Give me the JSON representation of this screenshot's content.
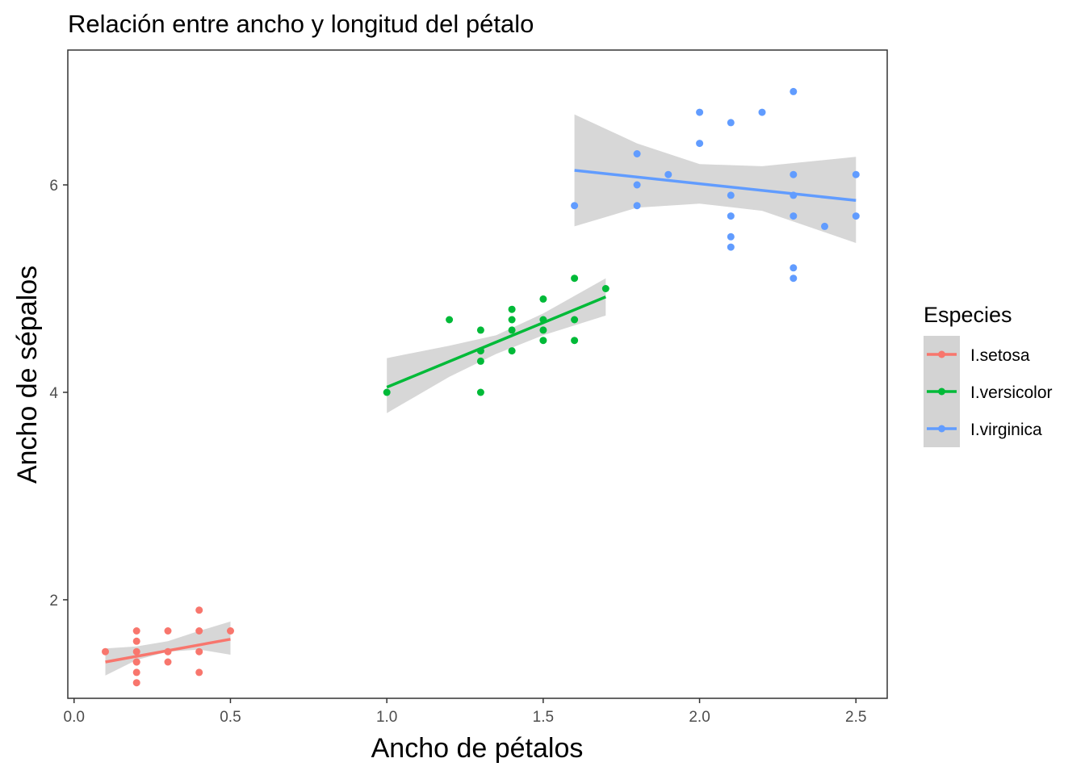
{
  "chart_data": {
    "type": "scatter",
    "title": "Relación entre ancho y longitud del pétalo",
    "xlabel": "Ancho de pétalos",
    "ylabel": "Ancho de sépalos",
    "xlim": [
      -0.02,
      2.6
    ],
    "ylim": [
      1.05,
      7.3
    ],
    "x_ticks": [
      0.0,
      0.5,
      1.0,
      1.5,
      2.0,
      2.5
    ],
    "x_tick_labels": [
      "0.0",
      "0.5",
      "1.0",
      "1.5",
      "2.0",
      "2.5"
    ],
    "y_ticks": [
      2,
      4,
      6
    ],
    "y_tick_labels": [
      "2",
      "4",
      "6"
    ],
    "grid": false,
    "legend": {
      "title": "Especies",
      "position": "right",
      "items": [
        "I.setosa",
        "I.versicolor",
        "I.virginica"
      ]
    },
    "series": [
      {
        "name": "I.setosa",
        "color": "#F8766D",
        "points": [
          [
            0.1,
            1.5
          ],
          [
            0.2,
            1.7
          ],
          [
            0.2,
            1.6
          ],
          [
            0.2,
            1.5
          ],
          [
            0.2,
            1.4
          ],
          [
            0.2,
            1.4
          ],
          [
            0.2,
            1.3
          ],
          [
            0.2,
            1.2
          ],
          [
            0.3,
            1.7
          ],
          [
            0.3,
            1.5
          ],
          [
            0.3,
            1.4
          ],
          [
            0.4,
            1.9
          ],
          [
            0.4,
            1.7
          ],
          [
            0.4,
            1.5
          ],
          [
            0.4,
            1.3
          ],
          [
            0.5,
            1.7
          ]
        ],
        "fit": {
          "x": [
            0.1,
            0.5
          ],
          "y": [
            1.4,
            1.62
          ]
        },
        "band": {
          "x": [
            0.1,
            0.2,
            0.3,
            0.4,
            0.5
          ],
          "lower": [
            1.27,
            1.42,
            1.5,
            1.52,
            1.47
          ],
          "upper": [
            1.53,
            1.55,
            1.6,
            1.7,
            1.79
          ]
        }
      },
      {
        "name": "I.versicolor",
        "color": "#00BA38",
        "points": [
          [
            1.0,
            4.0
          ],
          [
            1.2,
            4.7
          ],
          [
            1.3,
            4.6
          ],
          [
            1.3,
            4.4
          ],
          [
            1.3,
            4.3
          ],
          [
            1.3,
            4.0
          ],
          [
            1.4,
            4.8
          ],
          [
            1.4,
            4.7
          ],
          [
            1.4,
            4.6
          ],
          [
            1.4,
            4.4
          ],
          [
            1.5,
            4.9
          ],
          [
            1.5,
            4.7
          ],
          [
            1.5,
            4.6
          ],
          [
            1.5,
            4.5
          ],
          [
            1.6,
            5.1
          ],
          [
            1.6,
            4.7
          ],
          [
            1.6,
            4.5
          ],
          [
            1.7,
            5.0
          ]
        ],
        "fit": {
          "x": [
            1.0,
            1.7
          ],
          "y": [
            4.05,
            4.92
          ]
        },
        "band": {
          "x": [
            1.0,
            1.2,
            1.35,
            1.5,
            1.7
          ],
          "lower": [
            3.8,
            4.15,
            4.37,
            4.55,
            4.74
          ],
          "upper": [
            4.33,
            4.45,
            4.55,
            4.76,
            5.1
          ]
        }
      },
      {
        "name": "I.virginica",
        "color": "#619CFF",
        "points": [
          [
            1.6,
            5.8
          ],
          [
            1.8,
            6.3
          ],
          [
            1.8,
            6.0
          ],
          [
            1.8,
            5.8
          ],
          [
            1.9,
            6.1
          ],
          [
            2.0,
            6.7
          ],
          [
            2.0,
            6.4
          ],
          [
            2.1,
            6.6
          ],
          [
            2.1,
            5.9
          ],
          [
            2.1,
            5.7
          ],
          [
            2.1,
            5.5
          ],
          [
            2.1,
            5.4
          ],
          [
            2.2,
            6.7
          ],
          [
            2.3,
            6.9
          ],
          [
            2.3,
            6.1
          ],
          [
            2.3,
            5.9
          ],
          [
            2.3,
            5.7
          ],
          [
            2.3,
            5.2
          ],
          [
            2.3,
            5.1
          ],
          [
            2.4,
            5.6
          ],
          [
            2.5,
            6.1
          ],
          [
            2.5,
            5.7
          ]
        ],
        "fit": {
          "x": [
            1.6,
            2.5
          ],
          "y": [
            6.14,
            5.85
          ]
        },
        "band": {
          "x": [
            1.6,
            1.8,
            2.0,
            2.2,
            2.5
          ],
          "lower": [
            5.6,
            5.78,
            5.82,
            5.75,
            5.44
          ],
          "upper": [
            6.68,
            6.4,
            6.2,
            6.18,
            6.27
          ]
        }
      }
    ]
  }
}
